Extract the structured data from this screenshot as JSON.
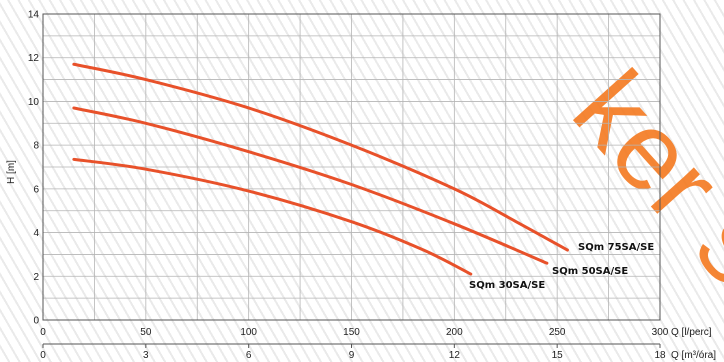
{
  "chart_data": {
    "type": "line",
    "ylabel": "H [m]",
    "ylim": [
      0,
      14
    ],
    "yticks": [
      "0",
      "2",
      "4",
      "6",
      "8",
      "10",
      "12",
      "14"
    ],
    "x_primary": {
      "label": "Q [l/perc]",
      "range": [
        0,
        300
      ],
      "ticks": [
        "0",
        "50",
        "100",
        "150",
        "200",
        "250",
        "300"
      ]
    },
    "x_secondary": {
      "label": "Q [m³/óra]",
      "range": [
        0,
        18
      ],
      "ticks": [
        "0",
        "3",
        "6",
        "9",
        "12",
        "15",
        "18"
      ]
    },
    "grid": true,
    "series": [
      {
        "name": "SQm 75SA/SE",
        "color": "#e8512a",
        "x": [
          15,
          50,
          100,
          150,
          200,
          230,
          255
        ],
        "y": [
          11.7,
          11.0,
          9.7,
          8.0,
          6.0,
          4.5,
          3.2
        ]
      },
      {
        "name": "SQm 50SA/SE",
        "color": "#e8512a",
        "x": [
          15,
          50,
          100,
          150,
          200,
          245
        ],
        "y": [
          9.7,
          9.0,
          7.7,
          6.2,
          4.4,
          2.6
        ]
      },
      {
        "name": "SQm 30SA/SE",
        "color": "#e8512a",
        "x": [
          15,
          50,
          100,
          150,
          185,
          208
        ],
        "y": [
          7.35,
          6.9,
          5.9,
          4.5,
          3.2,
          2.1
        ]
      }
    ],
    "annotations": [
      "SQm 75SA/SE",
      "SQm 50SA/SE",
      "SQm 30SA/SE"
    ]
  },
  "watermark": "ker s"
}
